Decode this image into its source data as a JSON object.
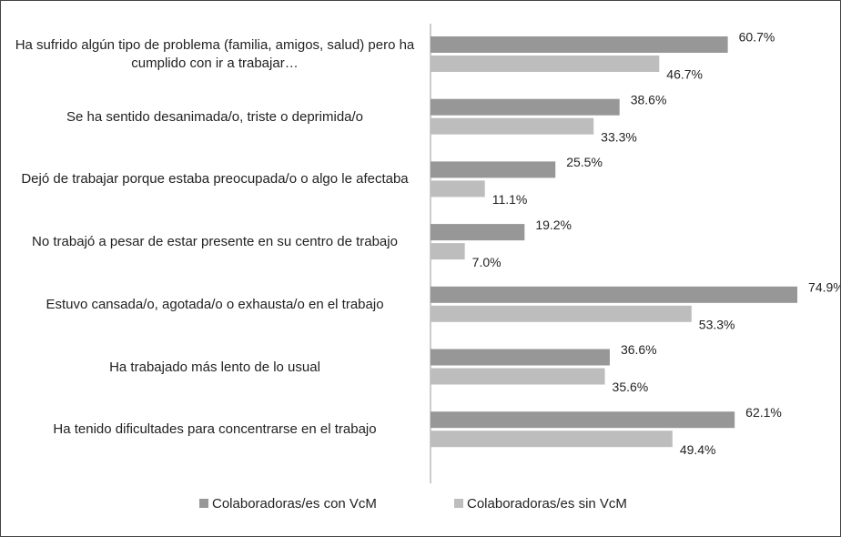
{
  "chart_data": {
    "type": "hbar",
    "categories": [
      "Ha sufrido algún tipo de problema (familia, amigos, salud) pero ha cumplido con ir a trabajar…",
      "Se ha sentido desanimada/o, triste o deprimida/o",
      "Dejó de trabajar porque estaba preocupada/o o algo le afectaba",
      "No trabajó a pesar de estar presente en su centro de trabajo",
      "Estuvo cansada/o, agotada/o o exhausta/o en el trabajo",
      "Ha trabajado más lento de lo usual",
      "Ha tenido dificultades para concentrarse en el trabajo"
    ],
    "series": [
      {
        "name": "Colaboradoras/es con VcM",
        "color": "#979797",
        "values": [
          60.7,
          38.6,
          25.5,
          19.2,
          74.9,
          36.6,
          62.1
        ],
        "value_labels": [
          "60.7%",
          "38.6%",
          "25.5%",
          "19.2%",
          "74.9%",
          "36.6%",
          "62.1%"
        ]
      },
      {
        "name": "Colaboradoras/es sin VcM",
        "color": "#bdbdbd",
        "values": [
          46.7,
          33.3,
          11.1,
          7.0,
          53.3,
          35.6,
          49.4
        ],
        "value_labels": [
          "46.7%",
          "33.3%",
          "11.1%",
          "7.0%",
          "53.3%",
          "35.6%",
          "49.4%"
        ]
      }
    ],
    "xlim": [
      0,
      84
    ],
    "legend": "bottom"
  }
}
